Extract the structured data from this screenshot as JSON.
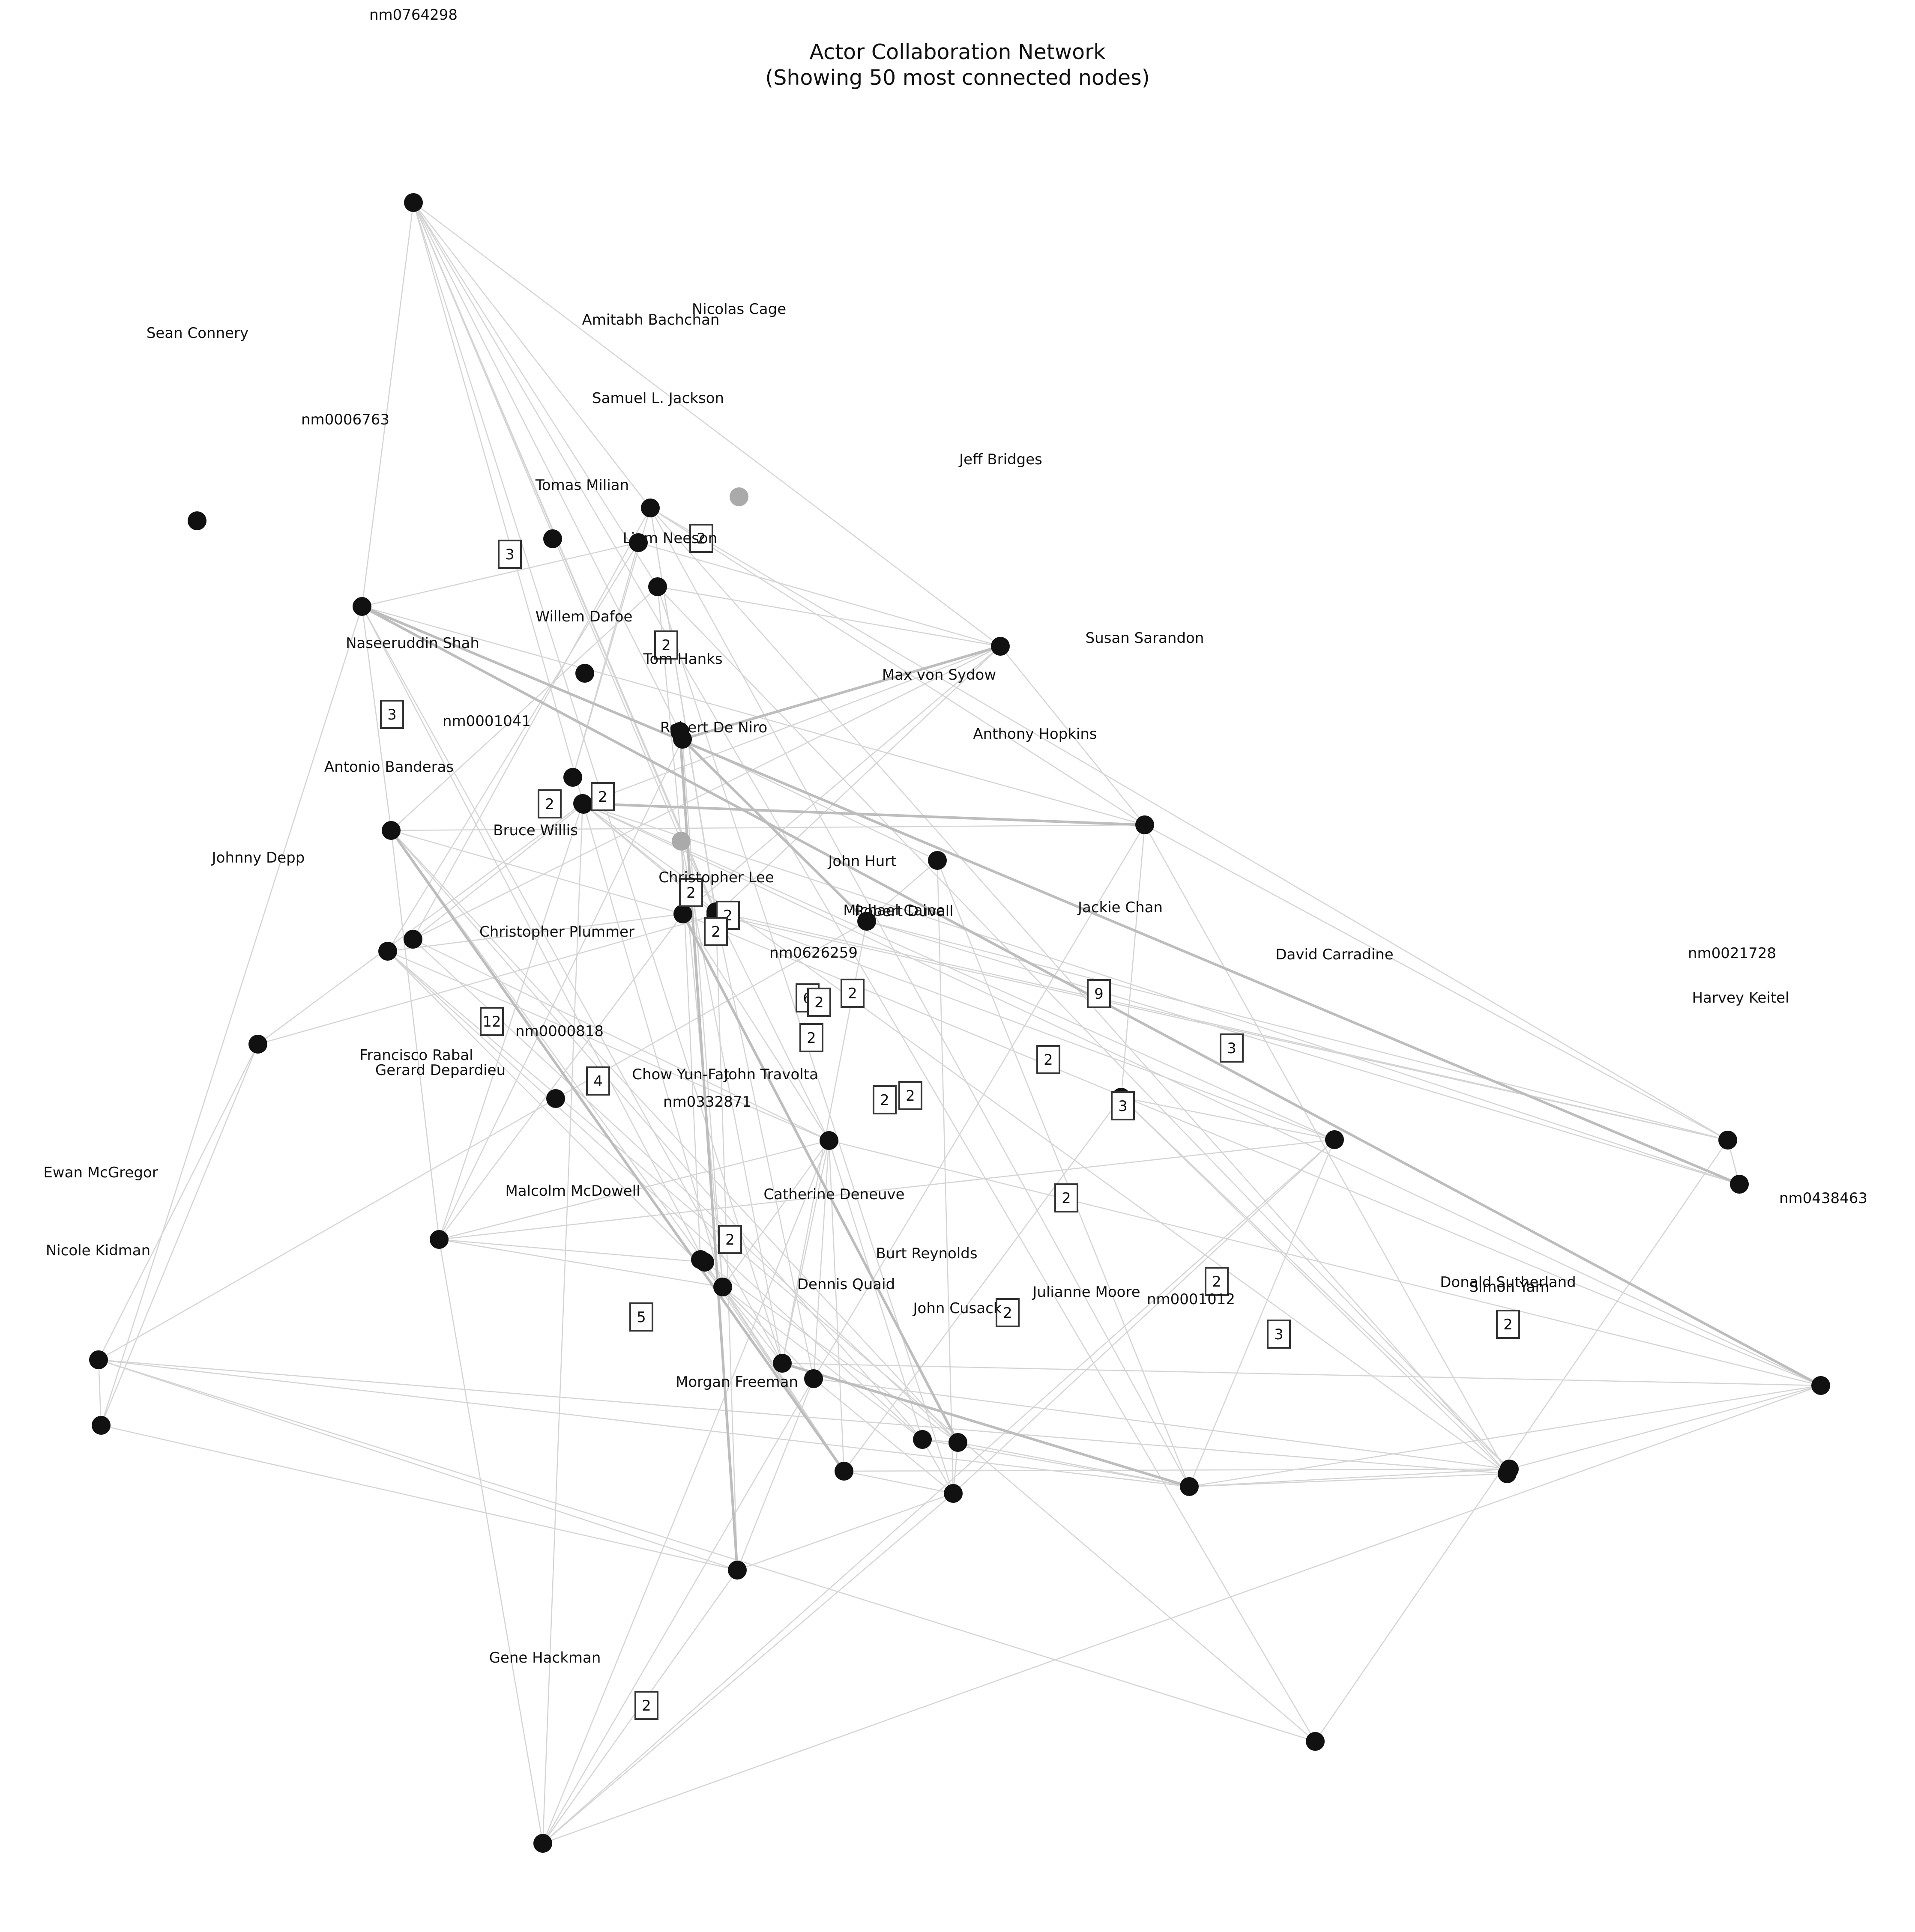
{
  "title": "Actor Collaboration Network",
  "subtitle": "(Showing 50 most connected nodes)",
  "colors": {
    "node": "#111111",
    "edge": "#cccccc",
    "node_gray": "#aaaaaa",
    "label_box_border": "#333333"
  },
  "node_labels": [
    "nm0764298",
    "Sean Connery",
    "Amitabh Bachchan",
    "Nicolas Cage",
    "Samuel L. Jackson",
    "nm0006763",
    "Jeff Bridges",
    "Tomas Milian",
    "Liam Neeson",
    "Willem Dafoe",
    "Susan Sarandon",
    "Naseeruddin Shah",
    "Tom Hanks",
    "Max von Sydow",
    "nm0001041",
    "Robert De Niro",
    "Anthony Hopkins",
    "Antonio Banderas",
    "Bruce Willis",
    "Johnny Depp",
    "John Hurt",
    "Christopher Lee",
    "Michael Caine",
    "Jackie Chan",
    "Christopher Plummer",
    "nm0626259",
    "David Carradine",
    "nm0021728",
    "Harvey Keitel",
    "nm0000818",
    "Francisco Rabal",
    "Gerard Depardieu",
    "Chow Yun-Fat",
    "John Travolta",
    "nm0332871",
    "Ewan McGregor",
    "Malcolm McDowell",
    "Catherine Deneuve",
    "nm0438463",
    "Nicole Kidman",
    "Burt Reynolds",
    "Dennis Quaid",
    "Julianne Moore",
    "nm0001012",
    "John Cusack",
    "Donald Sutherland",
    "Simon Yam",
    "Morgan Freeman",
    "Gene Hackman",
    "Robert Duvall"
  ],
  "edge_weights": [
    "3",
    "2",
    "2",
    "3",
    "2",
    "2",
    "2",
    "2",
    "2",
    "6",
    "2",
    "2",
    "2",
    "9",
    "12",
    "3",
    "2",
    "4",
    "2",
    "2",
    "3",
    "2",
    "2",
    "5",
    "2",
    "3",
    "2",
    "2",
    "2"
  ]
}
